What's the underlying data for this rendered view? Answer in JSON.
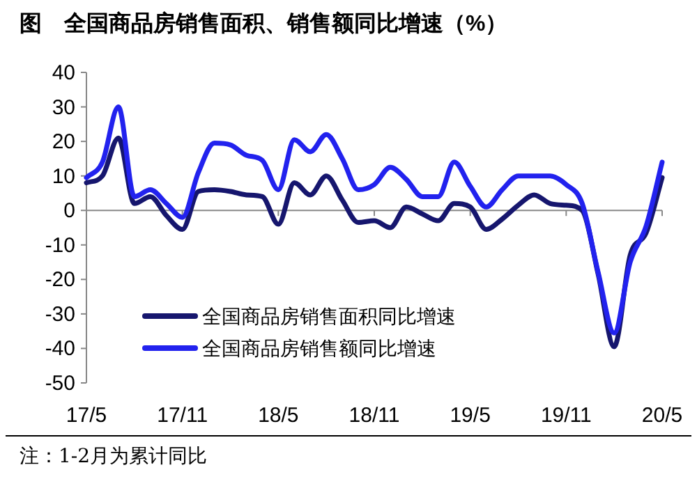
{
  "chart_data": {
    "type": "line",
    "title": "图　全国商品房销售面积、销售额同比增速（%）",
    "categories": [
      "17/5",
      null,
      null,
      null,
      null,
      null,
      "17/11",
      null,
      null,
      null,
      null,
      null,
      "18/5",
      null,
      null,
      null,
      null,
      null,
      "18/11",
      null,
      null,
      null,
      null,
      null,
      "19/5",
      null,
      null,
      null,
      null,
      null,
      "19/11",
      null,
      null,
      null,
      null,
      null,
      "20/5"
    ],
    "series": [
      {
        "name": "全国商品房销售面积同比增速",
        "color": "#16166e",
        "values": [
          8,
          10,
          21,
          2,
          4,
          -1.5,
          -5.5,
          5.5,
          6,
          5.5,
          4.5,
          4,
          -4,
          8,
          4.5,
          10,
          3,
          -3.5,
          -3,
          -5,
          1,
          -1,
          -3,
          2,
          1,
          -5.5,
          -2.5,
          1.5,
          4.5,
          2,
          1.5,
          0,
          -18.5,
          -39.5,
          -13,
          -6.5,
          9.5
        ]
      },
      {
        "name": "全国商品房销售额同比增速",
        "color": "#2222ee",
        "values": [
          9.5,
          14,
          30,
          4,
          6,
          2,
          -2,
          11,
          19.5,
          19,
          16,
          14.5,
          6,
          20.5,
          17,
          22,
          15,
          6,
          7.5,
          12.5,
          9,
          4,
          4,
          14,
          7,
          1,
          6,
          10,
          10,
          10,
          7.5,
          2,
          -18,
          -35.5,
          -15,
          -4.5,
          14
        ]
      }
    ],
    "ylim": [
      -50,
      40
    ],
    "yticks": [
      -50,
      -40,
      -30,
      -20,
      -10,
      0,
      10,
      20,
      30,
      40
    ],
    "legend": "bottom left",
    "annotations": [
      "注：1-2月为累计同比"
    ]
  }
}
